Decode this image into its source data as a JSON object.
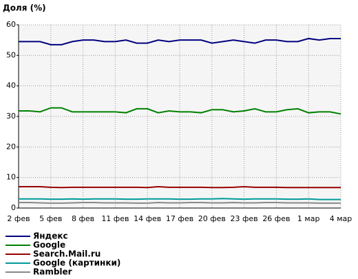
{
  "chart_data": {
    "type": "line",
    "title": "Доля (%)",
    "categories": [
      "2 фев",
      null,
      null,
      "5 фев",
      null,
      null,
      "8 фев",
      null,
      null,
      "11 фев",
      null,
      null,
      "14 фев",
      null,
      null,
      "17 фев",
      null,
      null,
      "20 фев",
      null,
      null,
      "23 фев",
      null,
      null,
      "26 фев",
      null,
      null,
      "1 мар",
      null,
      null,
      "4 мар"
    ],
    "ylim": [
      0,
      60
    ],
    "yticks": [
      0,
      10,
      20,
      30,
      40,
      50,
      60
    ],
    "grid": true,
    "series": [
      {
        "name": "Яндекс",
        "color": "#000080",
        "values": [
          54.5,
          54.5,
          54.5,
          53.5,
          53.5,
          54.5,
          55,
          55,
          54.5,
          54.5,
          55,
          54,
          54,
          55,
          54.5,
          55,
          55,
          55,
          54,
          54.5,
          55,
          54.5,
          54,
          55,
          55,
          54.5,
          54.5,
          55.5,
          55,
          55.5,
          55.5
        ]
      },
      {
        "name": "Google",
        "color": "#008000",
        "values": [
          31.8,
          31.8,
          31.5,
          32.8,
          32.8,
          31.5,
          31.5,
          31.5,
          31.5,
          31.5,
          31.2,
          32.5,
          32.5,
          31.2,
          31.8,
          31.5,
          31.5,
          31.2,
          32.2,
          32.2,
          31.5,
          31.8,
          32.5,
          31.5,
          31.5,
          32.2,
          32.5,
          31.2,
          31.5,
          31.5,
          30.8
        ]
      },
      {
        "name": "Search.Mail.ru",
        "color": "#990000",
        "values": [
          7,
          7,
          7,
          6.8,
          6.7,
          6.8,
          6.8,
          6.8,
          6.8,
          6.8,
          6.8,
          6.8,
          6.7,
          7,
          6.8,
          6.8,
          6.8,
          6.8,
          6.7,
          6.7,
          6.8,
          7,
          6.8,
          6.8,
          6.8,
          6.7,
          6.7,
          6.7,
          6.7,
          6.7,
          6.7
        ]
      },
      {
        "name": "Google (картинки)",
        "color": "#009999",
        "values": [
          3,
          3,
          3,
          2.9,
          2.9,
          3,
          2.9,
          3,
          3,
          3,
          2.9,
          2.9,
          3,
          3,
          3,
          2.9,
          2.9,
          3,
          3,
          3.1,
          3,
          2.9,
          3,
          3,
          3,
          2.9,
          2.9,
          3,
          2.8,
          2.8,
          2.8
        ]
      },
      {
        "name": "Rambler",
        "color": "#888888",
        "values": [
          1.8,
          1.8,
          1.7,
          1.6,
          1.6,
          1.7,
          1.8,
          1.8,
          1.7,
          1.7,
          1.7,
          1.6,
          1.6,
          1.8,
          1.7,
          1.7,
          1.8,
          1.8,
          1.7,
          1.7,
          1.8,
          1.7,
          1.7,
          1.8,
          1.8,
          1.7,
          1.7,
          1.7,
          1.6,
          1.6,
          1.6
        ]
      }
    ]
  }
}
